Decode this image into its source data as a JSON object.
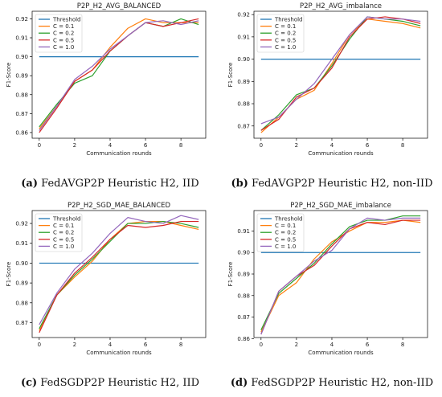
{
  "colors": {
    "threshold": "#1f77b4",
    "c01": "#ff7f0e",
    "c02": "#2ca02c",
    "c05": "#d62728",
    "c10": "#9467bd"
  },
  "chart_data": [
    {
      "type": "line",
      "id": "a",
      "title": "P2P_H2_AVG_BALANCED",
      "xlabel": "Communication rounds",
      "ylabel": "F1-Score",
      "caption_tag": "(a)",
      "caption_text": "FedAVGP2P Heuristic H2, IID",
      "xlim": [
        -0.4,
        9.4
      ],
      "ylim": [
        0.857,
        0.924
      ],
      "xticks": [
        0,
        2,
        4,
        6,
        8
      ],
      "yticks": [
        0.86,
        0.87,
        0.88,
        0.89,
        0.9,
        0.91,
        0.92
      ],
      "ytick_labels": [
        "0.86",
        "0.87",
        "0.88",
        "0.89",
        "0.90",
        "0.91",
        "0.92"
      ],
      "legend_position": "top-left",
      "x": [
        0,
        1,
        2,
        3,
        4,
        5,
        6,
        7,
        8,
        9
      ],
      "series": [
        {
          "name": "Threshold",
          "color_key": "threshold",
          "values": [
            0.9,
            0.9,
            0.9,
            0.9,
            0.9,
            0.9,
            0.9,
            0.9,
            0.9,
            0.9
          ]
        },
        {
          "name": "C = 0.1",
          "color_key": "c01",
          "values": [
            0.862,
            0.874,
            0.887,
            0.893,
            0.905,
            0.915,
            0.92,
            0.918,
            0.918,
            0.918
          ]
        },
        {
          "name": "C = 0.2",
          "color_key": "c02",
          "values": [
            0.863,
            0.875,
            0.886,
            0.89,
            0.903,
            0.911,
            0.918,
            0.916,
            0.92,
            0.917
          ]
        },
        {
          "name": "C = 0.5",
          "color_key": "c05",
          "values": [
            0.86,
            0.873,
            0.887,
            0.893,
            0.903,
            0.911,
            0.918,
            0.916,
            0.918,
            0.92
          ]
        },
        {
          "name": "C = 1.0",
          "color_key": "c10",
          "values": [
            0.861,
            0.874,
            0.888,
            0.895,
            0.904,
            0.911,
            0.918,
            0.919,
            0.917,
            0.919
          ]
        }
      ]
    },
    {
      "type": "line",
      "id": "b",
      "title": "P2P_H2_AVG_imbalance",
      "xlabel": "Communication rounds",
      "ylabel": "F1-Score",
      "caption_tag": "(b)",
      "caption_text": "FedAVGP2P Heuristic H2, non-IID",
      "xlim": [
        -0.4,
        9.4
      ],
      "ylim": [
        0.8645,
        0.9215
      ],
      "xticks": [
        0,
        2,
        4,
        6,
        8
      ],
      "yticks": [
        0.87,
        0.88,
        0.89,
        0.9,
        0.91,
        0.92
      ],
      "ytick_labels": [
        "0.87",
        "0.88",
        "0.89",
        "0.90",
        "0.91",
        "0.92"
      ],
      "legend_position": "top-left",
      "x": [
        0,
        1,
        2,
        3,
        4,
        5,
        6,
        7,
        8,
        9
      ],
      "series": [
        {
          "name": "Threshold",
          "color_key": "threshold",
          "values": [
            0.9,
            0.9,
            0.9,
            0.9,
            0.9,
            0.9,
            0.9,
            0.9,
            0.9,
            0.9
          ]
        },
        {
          "name": "C = 0.1",
          "color_key": "c01",
          "values": [
            0.867,
            0.874,
            0.882,
            0.886,
            0.898,
            0.911,
            0.918,
            0.917,
            0.916,
            0.914
          ]
        },
        {
          "name": "C = 0.2",
          "color_key": "c02",
          "values": [
            0.868,
            0.875,
            0.884,
            0.887,
            0.897,
            0.909,
            0.919,
            0.918,
            0.917,
            0.915
          ]
        },
        {
          "name": "C = 0.5",
          "color_key": "c05",
          "values": [
            0.868,
            0.873,
            0.883,
            0.887,
            0.896,
            0.91,
            0.918,
            0.919,
            0.918,
            0.916
          ]
        },
        {
          "name": "C = 1.0",
          "color_key": "c10",
          "values": [
            0.871,
            0.874,
            0.882,
            0.889,
            0.9,
            0.911,
            0.919,
            0.918,
            0.918,
            0.917
          ]
        }
      ]
    },
    {
      "type": "line",
      "id": "c",
      "title": "P2P_H2_SGD_MAE_BALANCED",
      "xlabel": "Communication rounds",
      "ylabel": "F1-Score",
      "caption_tag": "(c)",
      "caption_text": "FedSGDP2P Heuristic H2, IID",
      "xlim": [
        -0.4,
        9.4
      ],
      "ylim": [
        0.8625,
        0.9265
      ],
      "xticks": [
        0,
        2,
        4,
        6,
        8
      ],
      "yticks": [
        0.87,
        0.88,
        0.89,
        0.9,
        0.91,
        0.92
      ],
      "ytick_labels": [
        "0.87",
        "0.88",
        "0.89",
        "0.90",
        "0.91",
        "0.92"
      ],
      "legend_position": "top-left",
      "x": [
        0,
        1,
        2,
        3,
        4,
        5,
        6,
        7,
        8,
        9
      ],
      "series": [
        {
          "name": "Threshold",
          "color_key": "threshold",
          "values": [
            0.9,
            0.9,
            0.9,
            0.9,
            0.9,
            0.9,
            0.9,
            0.9,
            0.9,
            0.9
          ]
        },
        {
          "name": "C = 0.1",
          "color_key": "c01",
          "values": [
            0.866,
            0.884,
            0.893,
            0.901,
            0.912,
            0.92,
            0.921,
            0.921,
            0.919,
            0.917
          ]
        },
        {
          "name": "C = 0.2",
          "color_key": "c02",
          "values": [
            0.867,
            0.884,
            0.894,
            0.902,
            0.911,
            0.92,
            0.92,
            0.921,
            0.92,
            0.918
          ]
        },
        {
          "name": "C = 0.5",
          "color_key": "c05",
          "values": [
            0.865,
            0.884,
            0.895,
            0.903,
            0.912,
            0.919,
            0.918,
            0.919,
            0.921,
            0.921
          ]
        },
        {
          "name": "C = 1.0",
          "color_key": "c10",
          "values": [
            0.869,
            0.885,
            0.897,
            0.905,
            0.915,
            0.923,
            0.921,
            0.92,
            0.924,
            0.922
          ]
        }
      ]
    },
    {
      "type": "line",
      "id": "d",
      "title": "P2P_H2_SGD_MAE_imbalance",
      "xlabel": "Communication rounds",
      "ylabel": "F1-Score",
      "caption_tag": "(d)",
      "caption_text": "FedSGDP2P Heuristic H2, non-IID",
      "xlim": [
        -0.4,
        9.4
      ],
      "ylim": [
        0.8605,
        0.9195
      ],
      "xticks": [
        0,
        2,
        4,
        6,
        8
      ],
      "yticks": [
        0.86,
        0.87,
        0.88,
        0.89,
        0.9,
        0.91
      ],
      "ytick_labels": [
        "0.86",
        "0.87",
        "0.88",
        "0.89",
        "0.90",
        "0.91"
      ],
      "legend_position": "top-left",
      "x": [
        0,
        1,
        2,
        3,
        4,
        5,
        6,
        7,
        8,
        9
      ],
      "series": [
        {
          "name": "Threshold",
          "color_key": "threshold",
          "values": [
            0.9,
            0.9,
            0.9,
            0.9,
            0.9,
            0.9,
            0.9,
            0.9,
            0.9,
            0.9
          ]
        },
        {
          "name": "C = 0.1",
          "color_key": "c01",
          "values": [
            0.863,
            0.88,
            0.886,
            0.897,
            0.905,
            0.91,
            0.914,
            0.914,
            0.915,
            0.914
          ]
        },
        {
          "name": "C = 0.2",
          "color_key": "c02",
          "values": [
            0.864,
            0.881,
            0.888,
            0.895,
            0.904,
            0.912,
            0.915,
            0.915,
            0.917,
            0.917
          ]
        },
        {
          "name": "C = 0.5",
          "color_key": "c05",
          "values": [
            0.862,
            0.882,
            0.889,
            0.894,
            0.903,
            0.911,
            0.914,
            0.913,
            0.915,
            0.915
          ]
        },
        {
          "name": "C = 1.0",
          "color_key": "c10",
          "values": [
            0.862,
            0.882,
            0.889,
            0.896,
            0.901,
            0.911,
            0.916,
            0.915,
            0.916,
            0.916
          ]
        }
      ]
    }
  ]
}
